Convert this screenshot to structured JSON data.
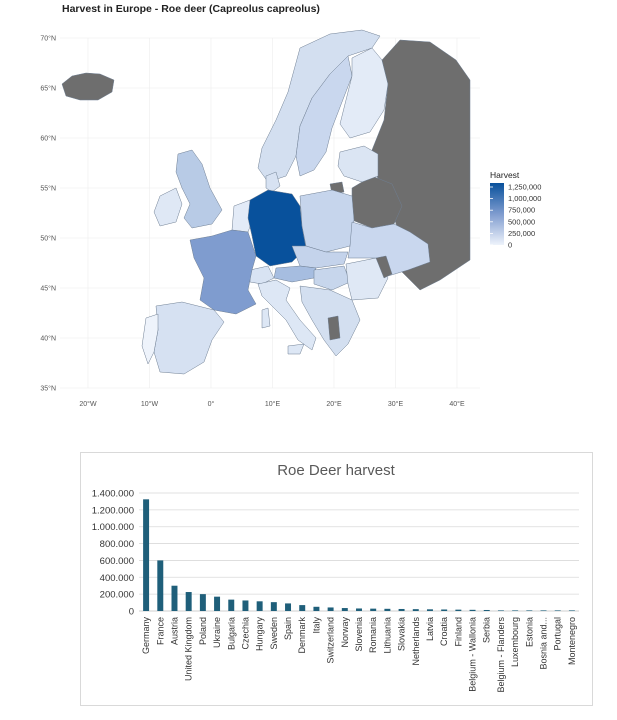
{
  "chart_data": [
    {
      "type": "heatmap",
      "title": "Harvest in Europe - Roe deer (Capreolus capreolus)",
      "legend": {
        "title": "Harvest",
        "ticks": [
          "1,250,000",
          "1,000,000",
          "750,000",
          "500,000",
          "250,000",
          "0"
        ],
        "placement": "right",
        "color_low": "#eef3fb",
        "color_high": "#08519c",
        "no_data_color": "#6e6e6e"
      },
      "x_ticks": [
        "20°W",
        "10°W",
        "0°",
        "10°E",
        "20°E",
        "30°E",
        "40°E"
      ],
      "y_ticks": [
        "70°N",
        "65°N",
        "60°N",
        "55°N",
        "50°N",
        "45°N",
        "40°N",
        "35°N"
      ],
      "grid": true
    },
    {
      "type": "bar",
      "title": "Roe Deer harvest",
      "categories": [
        "Germany",
        "France",
        "Austria",
        "United Kingdom",
        "Poland",
        "Ukraine",
        "Bulgaria",
        "Czechia",
        "Hungary",
        "Sweden",
        "Spain",
        "Denmark",
        "Italy",
        "Switzerland",
        "Norway",
        "Slovenia",
        "Romania",
        "Lithuania",
        "Slovakia",
        "Netherlands",
        "Latvia",
        "Croatia",
        "Finland",
        "Belgium - Wallonia",
        "Serbia",
        "Belgium - Flanders",
        "Luxembourg",
        "Estonia",
        "Bosnia and...",
        "Portugal",
        "Montenegro"
      ],
      "values": [
        1325000,
        600000,
        300000,
        225000,
        200000,
        170000,
        135000,
        125000,
        115000,
        105000,
        90000,
        70000,
        50000,
        42000,
        35000,
        30000,
        28000,
        26000,
        24000,
        22000,
        20000,
        18000,
        16000,
        14000,
        12000,
        6000,
        2000,
        1500,
        1000,
        500,
        300
      ],
      "y_ticks": [
        "1.400.000",
        "1.200.000",
        "1.000.000",
        "800.000",
        "600.000",
        "400.000",
        "200.000",
        "0"
      ],
      "ylim": [
        0,
        1400000
      ],
      "bar_color": "#1f5f7a",
      "grid": true
    }
  ]
}
